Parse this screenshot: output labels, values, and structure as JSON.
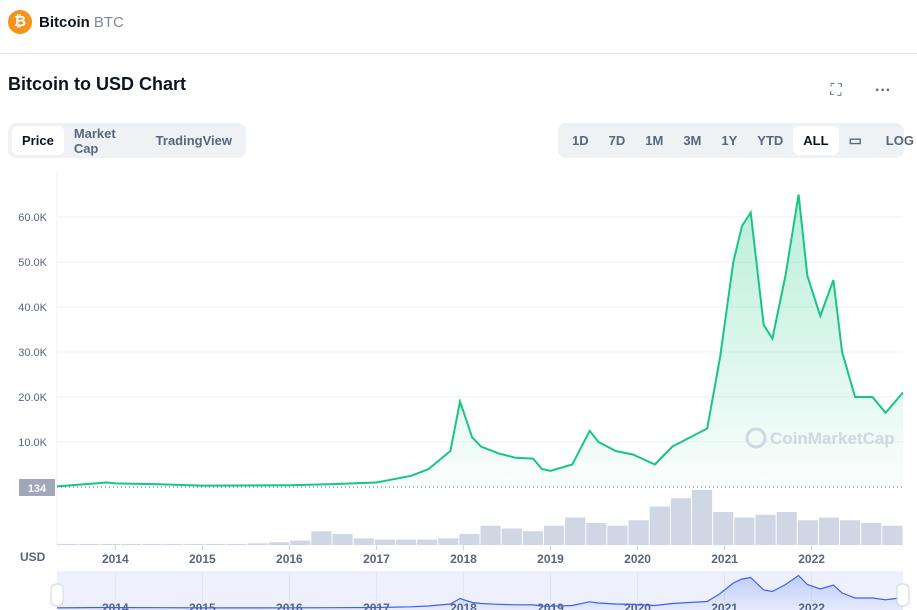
{
  "header": {
    "logo_icon": "bitcoin-icon",
    "name": "Bitcoin",
    "symbol": "BTC"
  },
  "title": "Bitcoin to USD Chart",
  "toolbar": {
    "fullscreen_icon": "fullscreen-icon",
    "more_icon": "more-icon"
  },
  "type_tabs": [
    {
      "label": "Price",
      "active": true
    },
    {
      "label": "Market Cap",
      "active": false
    },
    {
      "label": "TradingView",
      "active": false
    }
  ],
  "ranges": [
    {
      "label": "1D"
    },
    {
      "label": "7D"
    },
    {
      "label": "1M"
    },
    {
      "label": "3M"
    },
    {
      "label": "1Y"
    },
    {
      "label": "YTD"
    },
    {
      "label": "ALL",
      "active": true
    }
  ],
  "calendar_icon": "calendar-icon",
  "log_label": "LOG",
  "watermark": "CoinMarketCap",
  "colors": {
    "line": "#16c784",
    "navigator": "#3861fb",
    "volume": "#cfd6e4"
  },
  "chart_data": {
    "type": "area",
    "currency_label": "USD",
    "start_price_label": "134",
    "y_ticks": [
      "10.0K",
      "20.0K",
      "30.0K",
      "40.0K",
      "50.0K",
      "60.0K"
    ],
    "y_tick_values": [
      10000,
      20000,
      30000,
      40000,
      50000,
      60000
    ],
    "x_ticks": [
      "2014",
      "2015",
      "2016",
      "2017",
      "2018",
      "2019",
      "2020",
      "2021",
      "2022"
    ],
    "ylim": [
      0,
      70000
    ],
    "xlim": [
      2013.33,
      2023.05
    ],
    "grid": true,
    "series": [
      {
        "x": [
          2013.33,
          2013.9,
          2014.0,
          2014.5,
          2015.0,
          2016.0,
          2016.5,
          2017.0,
          2017.4,
          2017.6,
          2017.85,
          2017.96,
          2018.1,
          2018.2,
          2018.4,
          2018.6,
          2018.8,
          2018.9,
          2019.0,
          2019.25,
          2019.45,
          2019.55,
          2019.75,
          2019.95,
          2020.2,
          2020.4,
          2020.6,
          2020.8,
          2020.95,
          2021.1,
          2021.2,
          2021.3,
          2021.45,
          2021.55,
          2021.7,
          2021.85,
          2021.95,
          2022.1,
          2022.25,
          2022.35,
          2022.5,
          2022.7,
          2022.85,
          2023.05
        ],
        "y": [
          134,
          1000,
          800,
          600,
          300,
          400,
          650,
          1000,
          2500,
          4000,
          8000,
          19000,
          11000,
          9000,
          7500,
          6500,
          6300,
          4000,
          3600,
          5000,
          12500,
          10000,
          8000,
          7200,
          5000,
          9000,
          11000,
          13000,
          29000,
          50000,
          58000,
          61000,
          36000,
          33000,
          47000,
          65000,
          47000,
          38000,
          46000,
          30000,
          20000,
          20000,
          16500,
          21000
        ]
      }
    ],
    "volume_relative": [
      0.02,
      0.02,
      0.02,
      0.02,
      0.02,
      0.02,
      0.02,
      0.02,
      0.02,
      0.03,
      0.05,
      0.08,
      0.25,
      0.2,
      0.12,
      0.1,
      0.1,
      0.1,
      0.12,
      0.2,
      0.35,
      0.3,
      0.25,
      0.35,
      0.5,
      0.4,
      0.35,
      0.45,
      0.7,
      0.85,
      1.0,
      0.6,
      0.5,
      0.55,
      0.6,
      0.45,
      0.5,
      0.45,
      0.4,
      0.35
    ]
  }
}
